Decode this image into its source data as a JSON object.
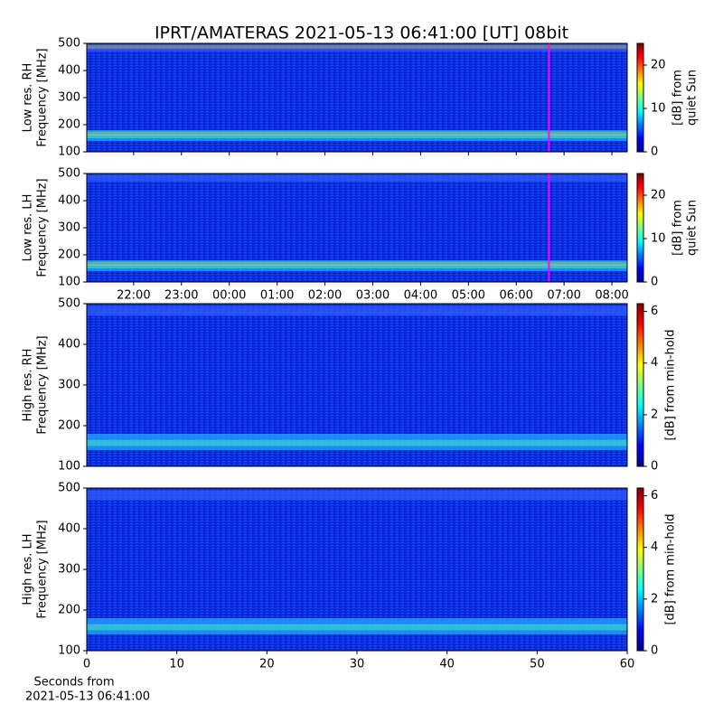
{
  "title": "IPRT/AMATERAS 2021-05-13 06:41:00 [UT]   08bit",
  "chart_data": [
    {
      "type": "heatmap",
      "ylabel": [
        "Low res. RH",
        "Frequency [MHz]"
      ],
      "xlim": [
        21.02,
        32.32
      ],
      "ylim": [
        100,
        500
      ],
      "yticks": [
        100,
        200,
        300,
        400,
        500
      ],
      "vline": 30.683,
      "vline_color": "#ff00ff",
      "colorbar_label": [
        "[dB] from",
        "quiet Sun"
      ],
      "clim": [
        0,
        25
      ],
      "cticks": [
        0,
        10,
        20
      ]
    },
    {
      "type": "heatmap",
      "ylabel": [
        "Low res. LH",
        "Frequency [MHz]"
      ],
      "xlim": [
        21.02,
        32.32
      ],
      "ylim": [
        100,
        500
      ],
      "yticks": [
        100,
        200,
        300,
        400,
        500
      ],
      "xticks": [
        {
          "value": 22,
          "label": "22:00"
        },
        {
          "value": 23,
          "label": "23:00"
        },
        {
          "value": 24,
          "label": "00:00"
        },
        {
          "value": 25,
          "label": "01:00"
        },
        {
          "value": 26,
          "label": "02:00"
        },
        {
          "value": 27,
          "label": "03:00"
        },
        {
          "value": 28,
          "label": "04:00"
        },
        {
          "value": 29,
          "label": "05:00"
        },
        {
          "value": 30,
          "label": "06:00"
        },
        {
          "value": 31,
          "label": "07:00"
        },
        {
          "value": 32,
          "label": "08:00"
        }
      ],
      "vline": 30.683,
      "vline_color": "#ff00ff",
      "colorbar_label": [
        "[dB] from",
        "quiet Sun"
      ],
      "clim": [
        0,
        25
      ],
      "cticks": [
        0,
        10,
        20
      ]
    },
    {
      "type": "heatmap",
      "ylabel": [
        "High res. RH",
        "Frequency [MHz]"
      ],
      "xlim": [
        0,
        60
      ],
      "ylim": [
        100,
        500
      ],
      "yticks": [
        100,
        200,
        300,
        400,
        500
      ],
      "colorbar_label": [
        "[dB] from min-hold"
      ],
      "clim": [
        0,
        6.3
      ],
      "cticks": [
        0,
        2,
        4,
        6
      ]
    },
    {
      "type": "heatmap",
      "ylabel": [
        "High res. LH",
        "Frequency [MHz]"
      ],
      "xlim": [
        0,
        60
      ],
      "ylim": [
        100,
        500
      ],
      "yticks": [
        100,
        200,
        300,
        400,
        500
      ],
      "xticks": [
        0,
        10,
        20,
        30,
        40,
        50,
        60
      ],
      "xlabel": [
        "Seconds from",
        "2021-05-13 06:41:00"
      ],
      "colorbar_label": [
        "[dB] from min-hold"
      ],
      "clim": [
        0,
        6.3
      ],
      "cticks": [
        0,
        2,
        4,
        6
      ]
    }
  ]
}
